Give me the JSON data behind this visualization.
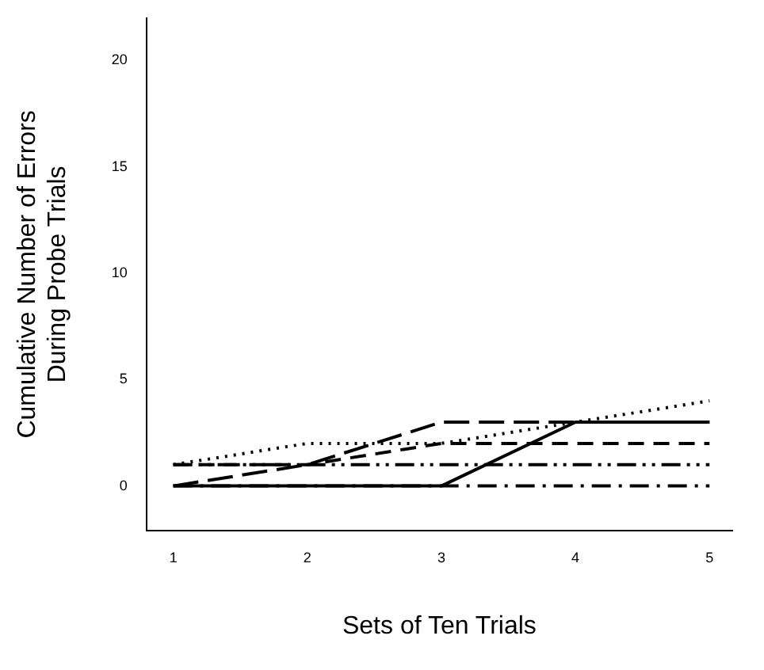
{
  "chart_data": {
    "type": "line",
    "xlabel": "Sets of Ten Trials",
    "ylabel": "Cumulative Number of Errors\nDuring Probe Trials",
    "x": [
      1,
      2,
      3,
      4,
      5
    ],
    "xlim": [
      0.8,
      5.17
    ],
    "xticks": [
      1,
      2,
      3,
      4,
      5
    ],
    "ylim": [
      -2.1,
      22
    ],
    "yticks": [
      0,
      5,
      10,
      15,
      20
    ],
    "grid": false,
    "legend": false,
    "marker": "none",
    "series": [
      {
        "color": "#000000",
        "line_style": "solid",
        "values": [
          0,
          0,
          0,
          3,
          3
        ]
      },
      {
        "color": "#000000",
        "line_style": "dotted",
        "values": [
          1,
          2,
          2,
          3,
          4
        ]
      },
      {
        "color": "#000000",
        "line_style": "longdash",
        "values": [
          0,
          1,
          3,
          3,
          3
        ]
      },
      {
        "color": "#000000",
        "line_style": "dashed",
        "values": [
          1,
          1,
          2,
          2,
          2
        ]
      },
      {
        "color": "#000000",
        "line_style": "dashdotdot",
        "values": [
          1,
          1,
          1,
          1,
          1
        ]
      },
      {
        "color": "#000000",
        "line_style": "dashdot",
        "values": [
          0,
          0,
          0,
          0,
          0
        ]
      }
    ]
  }
}
